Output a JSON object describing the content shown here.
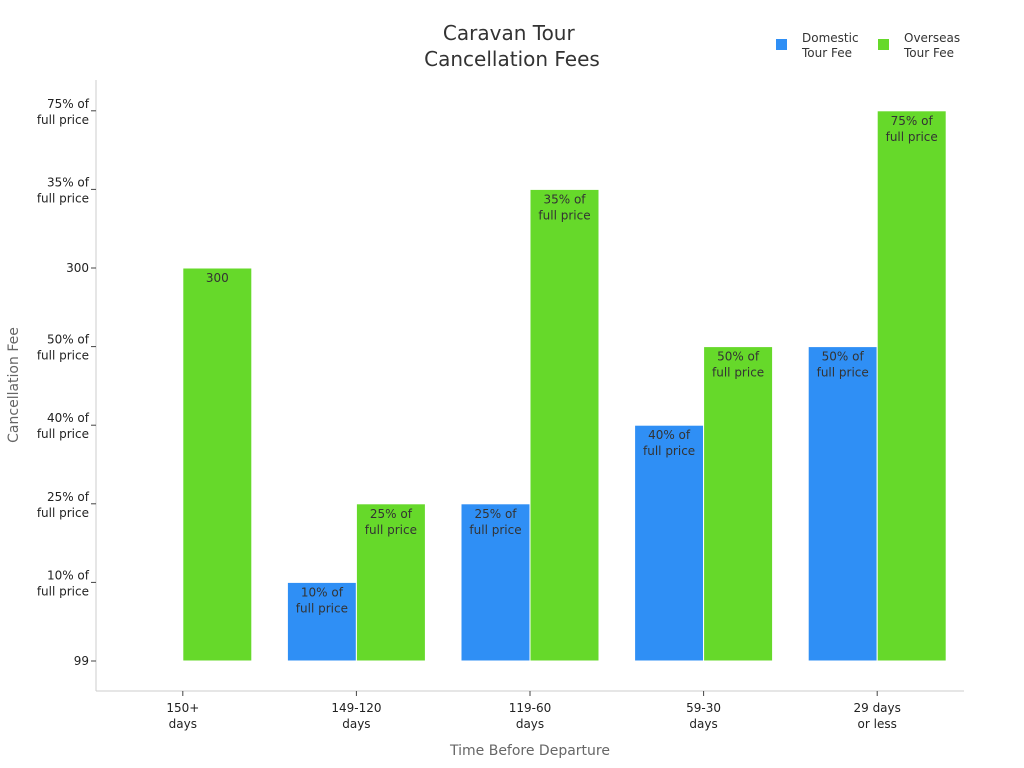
{
  "chart_data": {
    "type": "bar",
    "title": [
      "Caravan Tour",
      "Cancellation Fees"
    ],
    "xlabel": "Time Before Departure",
    "ylabel": "Cancellation Fee",
    "y_axis": "categorical",
    "y_levels": [
      [
        "99"
      ],
      [
        "10% of",
        "full price"
      ],
      [
        "25% of",
        "full price"
      ],
      [
        "40% of",
        "full price"
      ],
      [
        "50% of",
        "full price"
      ],
      [
        "300"
      ],
      [
        "35% of",
        "full price"
      ],
      [
        "75% of",
        "full price"
      ]
    ],
    "categories": [
      [
        "150+",
        "days"
      ],
      [
        "149-120",
        "days"
      ],
      [
        "119-60",
        "days"
      ],
      [
        "59-30",
        "days"
      ],
      [
        "29 days",
        "or less"
      ]
    ],
    "series": [
      {
        "name": [
          "Domestic",
          "Tour Fee"
        ],
        "color": "#2f8ff5",
        "values": [
          null,
          "10% of full price",
          "25% of full price",
          "40% of full price",
          "50% of full price"
        ],
        "levels": [
          null,
          1,
          2,
          3,
          4
        ],
        "labels": [
          null,
          [
            "10% of",
            "full price"
          ],
          [
            "25% of",
            "full price"
          ],
          [
            "40% of",
            "full price"
          ],
          [
            "50% of",
            "full price"
          ]
        ]
      },
      {
        "name": [
          "Overseas",
          "Tour Fee"
        ],
        "color": "#66d92a",
        "values": [
          "300",
          "25% of full price",
          "35% of full price",
          "50% of full price",
          "75% of full price"
        ],
        "levels": [
          5,
          2,
          6,
          4,
          7
        ],
        "labels": [
          [
            "300"
          ],
          [
            "25% of",
            "full price"
          ],
          [
            "35% of",
            "full price"
          ],
          [
            "50% of",
            "full price"
          ],
          [
            "75% of",
            "full price"
          ]
        ]
      }
    ],
    "legend": "top-right",
    "grid": false
  }
}
